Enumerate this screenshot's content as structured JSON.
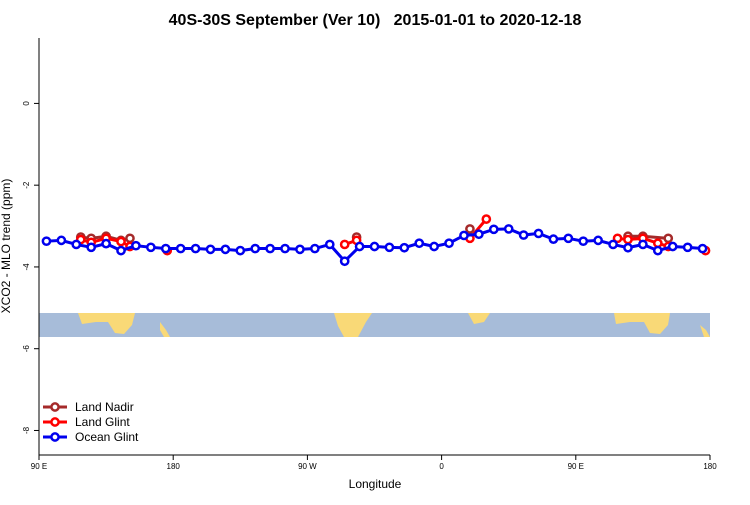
{
  "chart_data": {
    "type": "line",
    "title": "40S-30S September (Ver 10)   2015-01-01 to 2020-12-18",
    "x_label": "Longitude",
    "y_label": "XCO2 - MLO trend (ppm)",
    "xlim": [
      90,
      540
    ],
    "ylim": [
      -8.6,
      1.6
    ],
    "xticks": [
      {
        "value": 90,
        "label": "90 E"
      },
      {
        "value": 180,
        "label": "180"
      },
      {
        "value": 270,
        "label": "90 W"
      },
      {
        "value": 360,
        "label": "0"
      },
      {
        "value": 450,
        "label": "90 E"
      },
      {
        "value": 540,
        "label": "180"
      }
    ],
    "yticks": [
      0,
      -2,
      -4,
      -6,
      -8
    ],
    "legend": "bottom-left",
    "series": [
      {
        "name": "Land Nadir",
        "color": "#a52a2a",
        "x": [
          118,
          125,
          135,
          145,
          151,
          null,
          303,
          null,
          379,
          null,
          485,
          495,
          512
        ],
        "values": [
          -3.27,
          -3.3,
          -3.25,
          -3.35,
          -3.3,
          null,
          -3.27,
          null,
          -3.07,
          null,
          -3.25,
          -3.25,
          -3.3
        ]
      },
      {
        "name": "Land Glint",
        "color": "#ff0000",
        "x": [
          118,
          125,
          135,
          145,
          151,
          null,
          176,
          null,
          295,
          303,
          null,
          379,
          390,
          null,
          478,
          485,
          495,
          505,
          512,
          null,
          537
        ],
        "values": [
          -3.33,
          -3.4,
          -3.3,
          -3.38,
          -3.5,
          null,
          -3.6,
          null,
          -3.45,
          -3.35,
          null,
          -3.3,
          -2.83,
          null,
          -3.3,
          -3.33,
          -3.3,
          -3.42,
          -3.5,
          null,
          -3.6
        ]
      },
      {
        "name": "Ocean Glint",
        "color": "#0000ee",
        "x": [
          95,
          105,
          115,
          125,
          135,
          145,
          155,
          165,
          175,
          185,
          195,
          205,
          215,
          225,
          235,
          245,
          255,
          265,
          275,
          285,
          295,
          305,
          315,
          325,
          335,
          345,
          355,
          365,
          375,
          385,
          395,
          405,
          415,
          425,
          435,
          445,
          455,
          465,
          475,
          485,
          495,
          505,
          515,
          525,
          535
        ],
        "values": [
          -3.37,
          -3.35,
          -3.45,
          -3.52,
          -3.43,
          -3.6,
          -3.48,
          -3.52,
          -3.55,
          -3.55,
          -3.55,
          -3.57,
          -3.57,
          -3.6,
          -3.55,
          -3.55,
          -3.55,
          -3.57,
          -3.55,
          -3.45,
          -3.86,
          -3.5,
          -3.5,
          -3.52,
          -3.53,
          -3.42,
          -3.5,
          -3.42,
          -3.23,
          -3.2,
          -3.08,
          -3.07,
          -3.22,
          -3.18,
          -3.32,
          -3.3,
          -3.37,
          -3.35,
          -3.45,
          -3.53,
          -3.45,
          -3.6,
          -3.5,
          -3.52,
          -3.55
        ]
      }
    ]
  }
}
